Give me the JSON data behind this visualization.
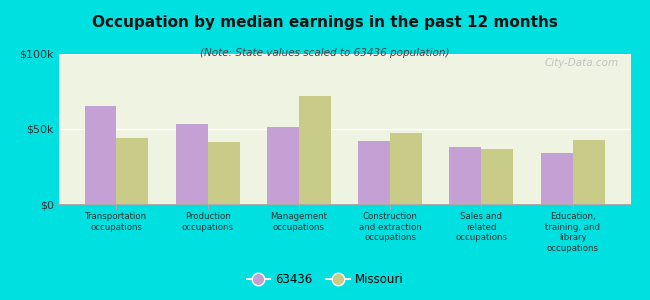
{
  "title": "Occupation by median earnings in the past 12 months",
  "subtitle": "(Note: State values scaled to 63436 population)",
  "categories": [
    "Transportation\noccupations",
    "Production\noccupations",
    "Management\noccupations",
    "Construction\nand extraction\noccupations",
    "Sales and\nrelated\noccupations",
    "Education,\ntraining, and\nlibrary\noccupations"
  ],
  "values_63436": [
    65000,
    53000,
    51000,
    42000,
    38000,
    34000
  ],
  "values_missouri": [
    44000,
    41000,
    72000,
    47000,
    37000,
    43000
  ],
  "color_63436": "#c4a0d4",
  "color_missouri": "#c8cc88",
  "background_outer": "#00e0e0",
  "background_plot": "#eef3e2",
  "ylim": [
    0,
    100000
  ],
  "yticks": [
    0,
    50000,
    100000
  ],
  "ytick_labels": [
    "$0",
    "$50k",
    "$100k"
  ],
  "bar_width": 0.35,
  "legend_labels": [
    "63436",
    "Missouri"
  ],
  "watermark": "City-Data.com"
}
